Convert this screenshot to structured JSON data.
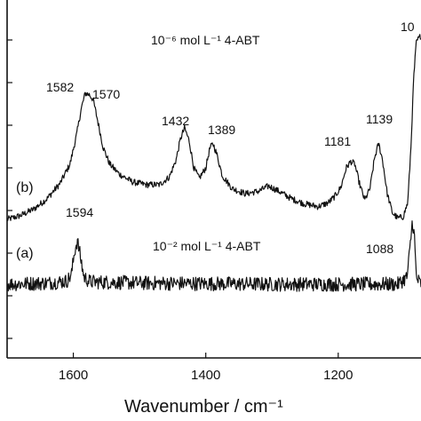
{
  "chart_data": {
    "type": "line",
    "xlabel": "Wavenumber / cm⁻¹",
    "x_ticks": [
      1600,
      1400,
      1200
    ],
    "xlim": [
      1700,
      1075
    ],
    "x_reversed": true,
    "ylabel": "",
    "y_tick_count": 8,
    "grid": false,
    "series": [
      {
        "name": "(b)",
        "annotation": "10⁻⁶ mol L⁻¹  4-ABT",
        "anchors": [
          [
            1700,
            0.02
          ],
          [
            1680,
            0.05
          ],
          [
            1660,
            0.1
          ],
          [
            1640,
            0.18
          ],
          [
            1620,
            0.3
          ],
          [
            1605,
            0.45
          ],
          [
            1595,
            0.68
          ],
          [
            1588,
            0.88
          ],
          [
            1582,
            1.0
          ],
          [
            1576,
            0.99
          ],
          [
            1570,
            0.95
          ],
          [
            1563,
            0.78
          ],
          [
            1555,
            0.58
          ],
          [
            1545,
            0.45
          ],
          [
            1530,
            0.37
          ],
          [
            1510,
            0.31
          ],
          [
            1490,
            0.29
          ],
          [
            1470,
            0.29
          ],
          [
            1455,
            0.35
          ],
          [
            1445,
            0.48
          ],
          [
            1438,
            0.65
          ],
          [
            1432,
            0.73
          ],
          [
            1425,
            0.63
          ],
          [
            1418,
            0.42
          ],
          [
            1410,
            0.34
          ],
          [
            1400,
            0.42
          ],
          [
            1394,
            0.57
          ],
          [
            1389,
            0.61
          ],
          [
            1383,
            0.52
          ],
          [
            1375,
            0.36
          ],
          [
            1360,
            0.26
          ],
          [
            1340,
            0.22
          ],
          [
            1320,
            0.24
          ],
          [
            1305,
            0.28
          ],
          [
            1290,
            0.24
          ],
          [
            1270,
            0.18
          ],
          [
            1250,
            0.14
          ],
          [
            1230,
            0.12
          ],
          [
            1215,
            0.15
          ],
          [
            1205,
            0.2
          ],
          [
            1196,
            0.27
          ],
          [
            1188,
            0.42
          ],
          [
            1181,
            0.47
          ],
          [
            1175,
            0.45
          ],
          [
            1168,
            0.3
          ],
          [
            1160,
            0.17
          ],
          [
            1152,
            0.26
          ],
          [
            1145,
            0.5
          ],
          [
            1139,
            0.61
          ],
          [
            1133,
            0.48
          ],
          [
            1126,
            0.22
          ],
          [
            1118,
            0.07
          ],
          [
            1110,
            0.03
          ],
          [
            1102,
            0.04
          ],
          [
            1095,
            0.15
          ],
          [
            1090,
            0.6
          ],
          [
            1086,
            1.12
          ],
          [
            1082,
            1.4
          ],
          [
            1075,
            1.45
          ]
        ],
        "peak_labels": [
          "1582",
          "1570",
          "1432",
          "1389",
          "1181",
          "1139",
          "10"
        ]
      },
      {
        "name": "(a)",
        "annotation": "10⁻² mol L⁻¹  4-ABT",
        "anchors": [
          [
            1700,
            0.0
          ],
          [
            1640,
            0.02
          ],
          [
            1610,
            0.05
          ],
          [
            1603,
            0.15
          ],
          [
            1598,
            0.55
          ],
          [
            1594,
            0.72
          ],
          [
            1590,
            0.5
          ],
          [
            1584,
            0.12
          ],
          [
            1575,
            0.04
          ],
          [
            1500,
            0.02
          ],
          [
            1300,
            0.0
          ],
          [
            1200,
            0.0
          ],
          [
            1110,
            0.0
          ],
          [
            1096,
            0.12
          ],
          [
            1092,
            0.55
          ],
          [
            1088,
            1.05
          ],
          [
            1085,
            0.8
          ],
          [
            1082,
            0.1
          ],
          [
            1075,
            0.0
          ]
        ],
        "peak_labels": [
          "1594",
          "1088"
        ]
      }
    ]
  }
}
